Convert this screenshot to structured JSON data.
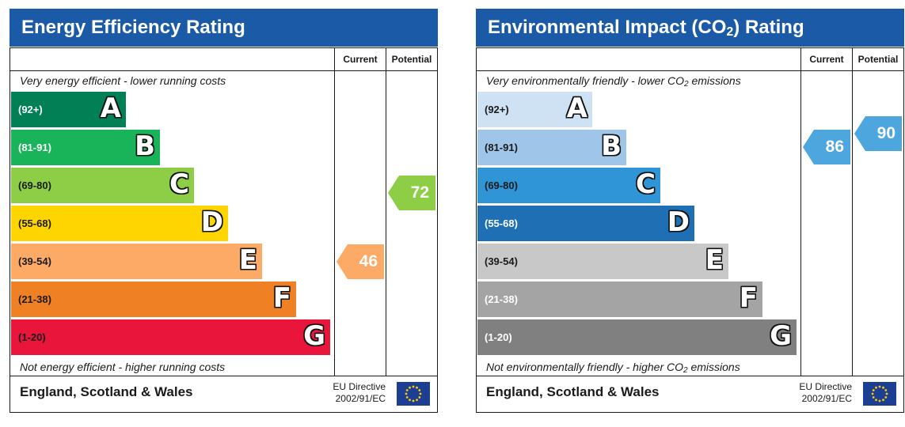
{
  "chart_data": [
    {
      "type": "bar",
      "title": "Energy Efficiency Rating",
      "columns": [
        "Current",
        "Potential"
      ],
      "top_note": "Very energy efficient - lower running costs",
      "bottom_note": "Not energy efficient - higher running costs",
      "bands": [
        {
          "range": "(92+)",
          "letter": "A",
          "color": "#008054",
          "text_color": "#ffffff"
        },
        {
          "range": "(81-91)",
          "letter": "B",
          "color": "#19b459",
          "text_color": "#ffffff"
        },
        {
          "range": "(69-80)",
          "letter": "C",
          "color": "#8dce46",
          "text_color": "#1a1a1a"
        },
        {
          "range": "(55-68)",
          "letter": "D",
          "color": "#ffd500",
          "text_color": "#1a1a1a"
        },
        {
          "range": "(39-54)",
          "letter": "E",
          "color": "#fcaa65",
          "text_color": "#1a1a1a"
        },
        {
          "range": "(21-38)",
          "letter": "F",
          "color": "#ef8023",
          "text_color": "#1a1a1a"
        },
        {
          "range": "(1-20)",
          "letter": "G",
          "color": "#e9153b",
          "text_color": "#1a1a1a"
        }
      ],
      "current": {
        "value": 46,
        "band": "E",
        "color": "#fcaa65"
      },
      "potential": {
        "value": 72,
        "band": "C",
        "color": "#8dce46"
      },
      "footer": {
        "region": "England, Scotland & Wales",
        "directive_line1": "EU Directive",
        "directive_line2": "2002/91/EC"
      }
    },
    {
      "type": "bar",
      "title": "Environmental Impact (CO",
      "title_sub": "2",
      "title_after": ") Rating",
      "columns": [
        "Current",
        "Potential"
      ],
      "top_note": "Very environmentally friendly - lower CO",
      "top_note_sub": "2",
      "top_note_after": " emissions",
      "bottom_note": "Not environmentally friendly - higher CO",
      "bottom_note_sub": "2",
      "bottom_note_after": " emissions",
      "bands": [
        {
          "range": "(92+)",
          "letter": "A",
          "color": "#cfe2f3",
          "text_color": "#1a1a1a"
        },
        {
          "range": "(81-91)",
          "letter": "B",
          "color": "#9fc5e8",
          "text_color": "#1a1a1a"
        },
        {
          "range": "(69-80)",
          "letter": "C",
          "color": "#2f95d6",
          "text_color": "#1a1a1a"
        },
        {
          "range": "(55-68)",
          "letter": "D",
          "color": "#1f6fb5",
          "text_color": "#ffffff"
        },
        {
          "range": "(39-54)",
          "letter": "E",
          "color": "#c8c8c8",
          "text_color": "#1a1a1a"
        },
        {
          "range": "(21-38)",
          "letter": "F",
          "color": "#a4a4a4",
          "text_color": "#ffffff"
        },
        {
          "range": "(1-20)",
          "letter": "G",
          "color": "#808080",
          "text_color": "#ffffff"
        }
      ],
      "current": {
        "value": 86,
        "band": "B",
        "color": "#4da6dd"
      },
      "potential": {
        "value": 90,
        "band": "B",
        "color": "#4da6dd"
      },
      "footer": {
        "region": "England, Scotland & Wales",
        "directive_line1": "EU Directive",
        "directive_line2": "2002/91/EC"
      }
    }
  ],
  "icons": {
    "flag": "eu-flag-icon",
    "star_color": "#ffcc00"
  }
}
